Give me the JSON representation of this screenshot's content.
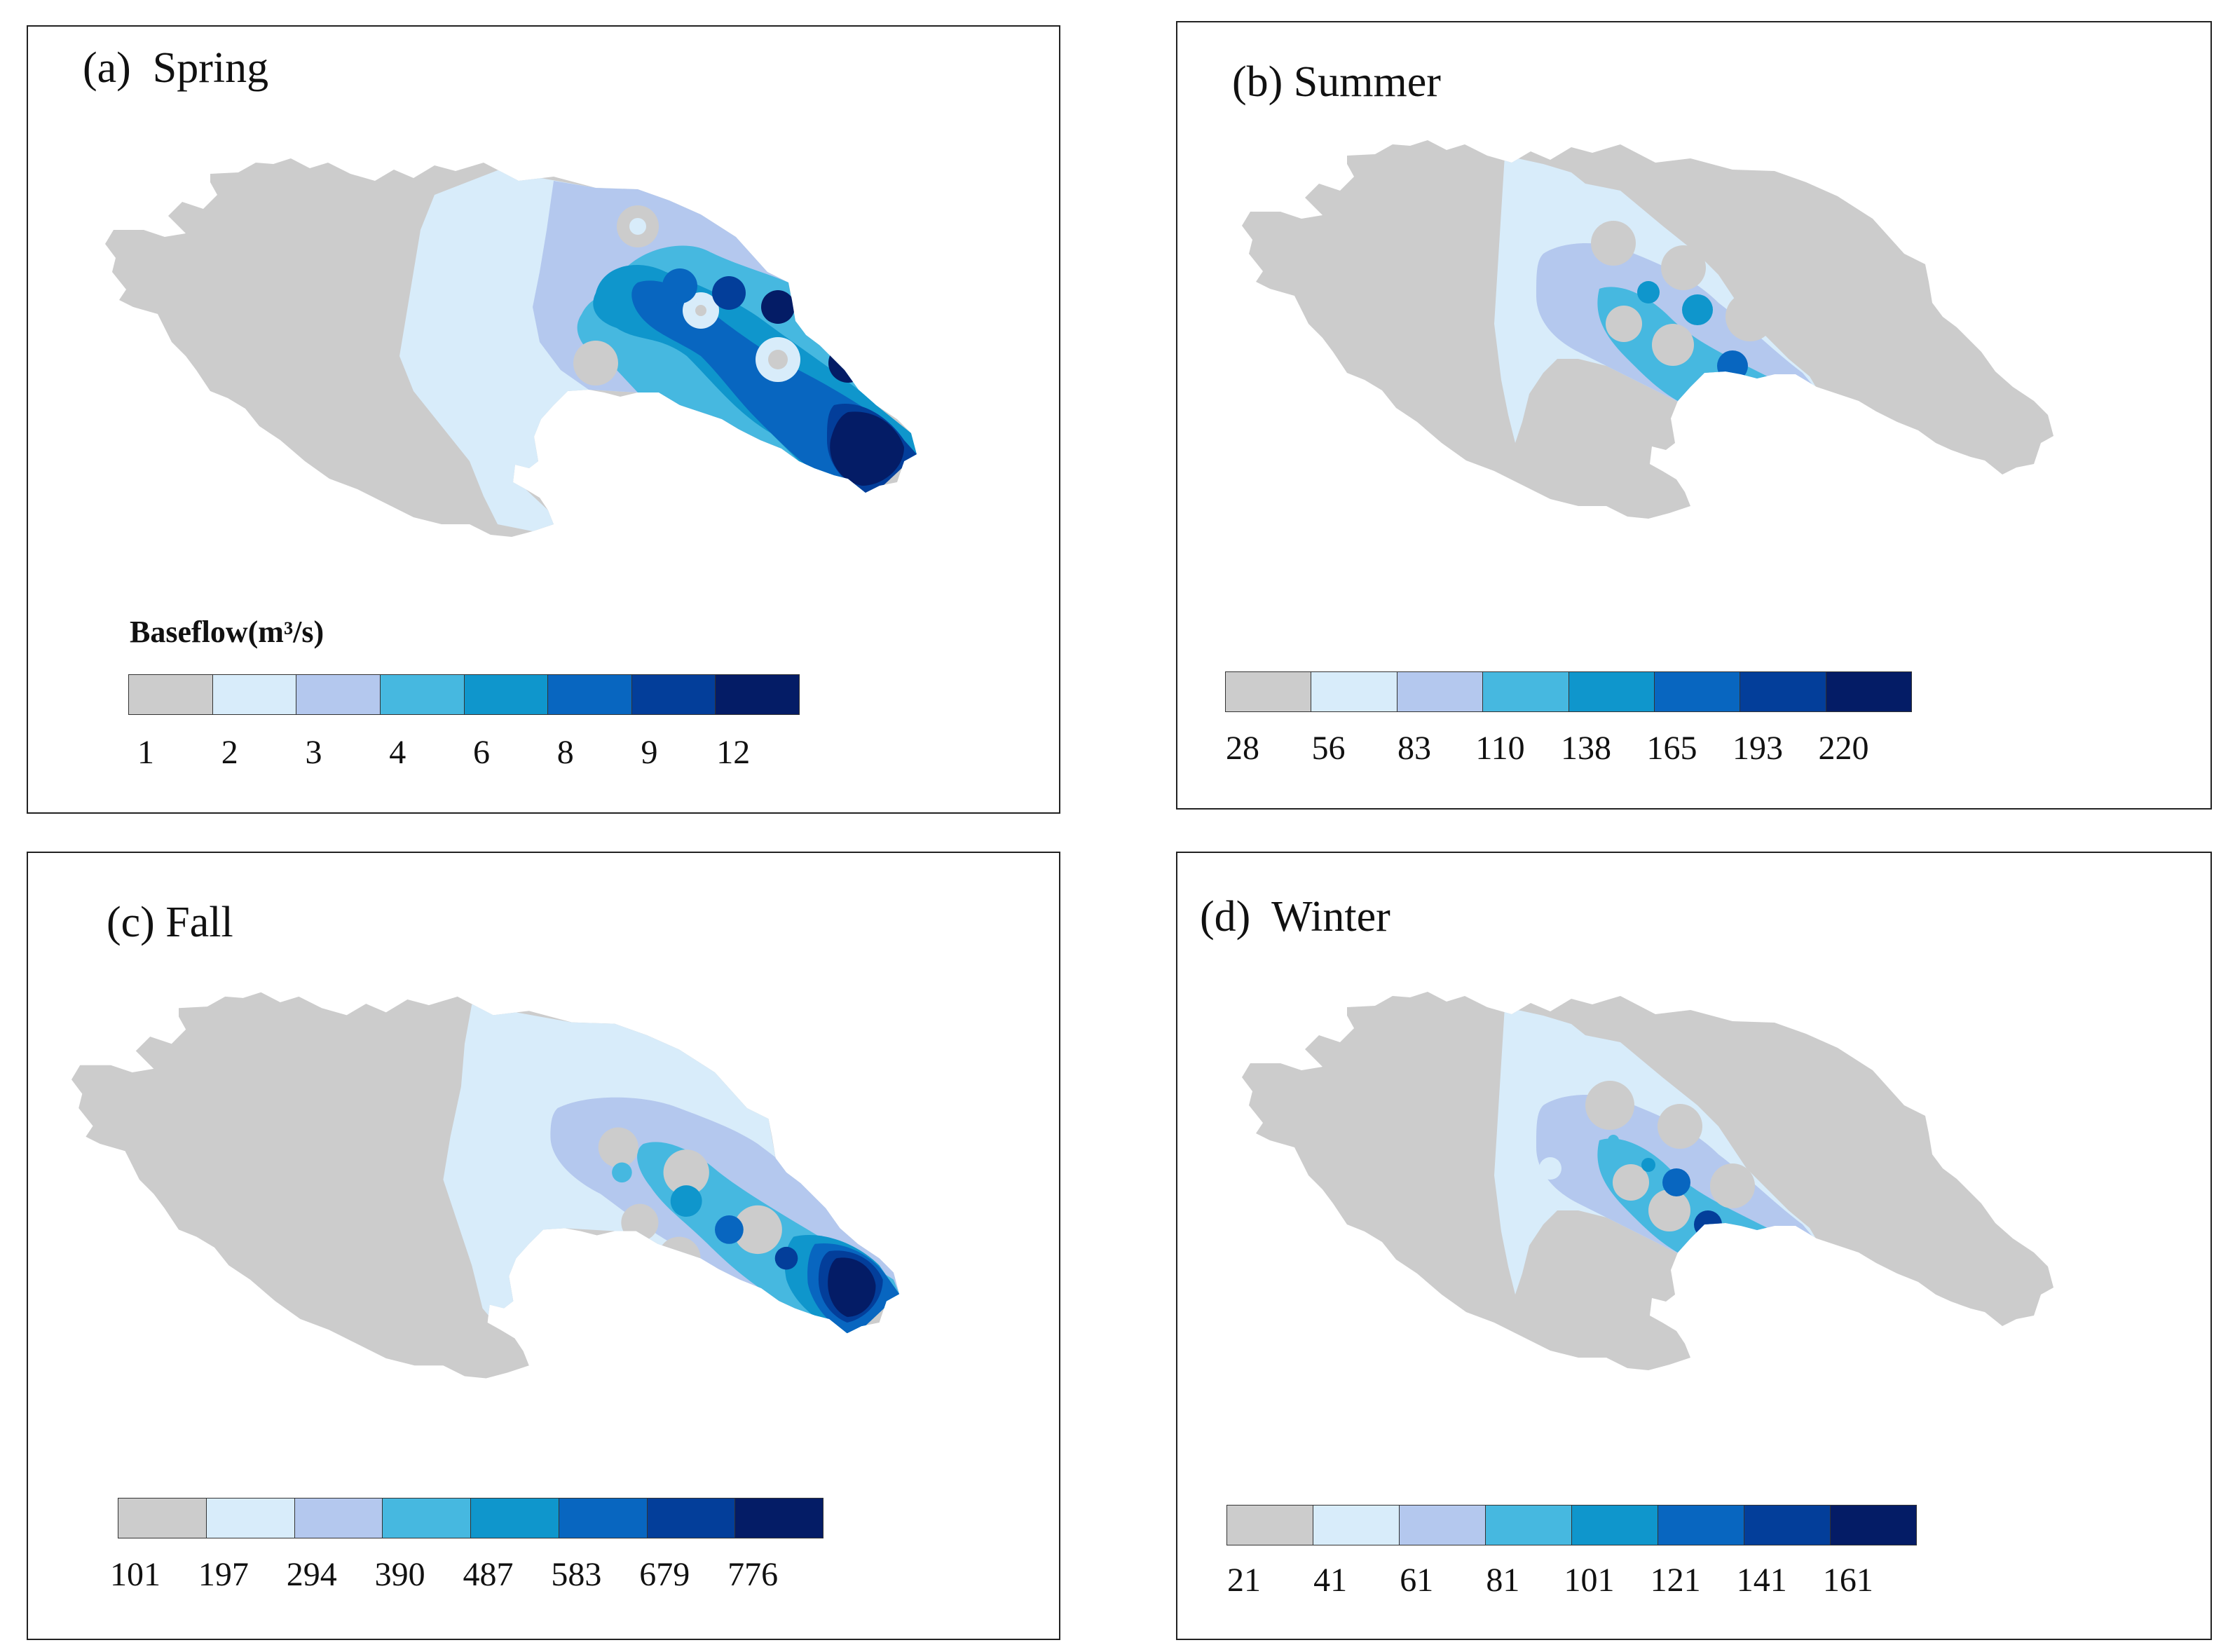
{
  "colors": [
    "#cccccc",
    "#d8ecfa",
    "#b4c8ee",
    "#46b8e0",
    "#0f96cc",
    "#0866c0",
    "#033e9a",
    "#041c66"
  ],
  "panels": [
    {
      "id": "a",
      "title": "(a)  Spring",
      "legend_title": "Baseflow(m³/s)",
      "legend_labels": [
        "1",
        "2",
        "3",
        "4",
        "6",
        "8",
        "9",
        "12"
      ]
    },
    {
      "id": "b",
      "title": "(b) Summer",
      "legend_title": "",
      "legend_labels": [
        "28",
        "56",
        "83",
        "110",
        "138",
        "165",
        "193",
        "220"
      ]
    },
    {
      "id": "c",
      "title": "(c) Fall",
      "legend_title": "",
      "legend_labels": [
        "101",
        "197",
        "294",
        "390",
        "487",
        "583",
        "679",
        "776"
      ]
    },
    {
      "id": "d",
      "title": "(d)  Winter",
      "legend_title": "",
      "legend_labels": [
        "21",
        "41",
        "61",
        "81",
        "101",
        "121",
        "141",
        "161"
      ]
    }
  ]
}
